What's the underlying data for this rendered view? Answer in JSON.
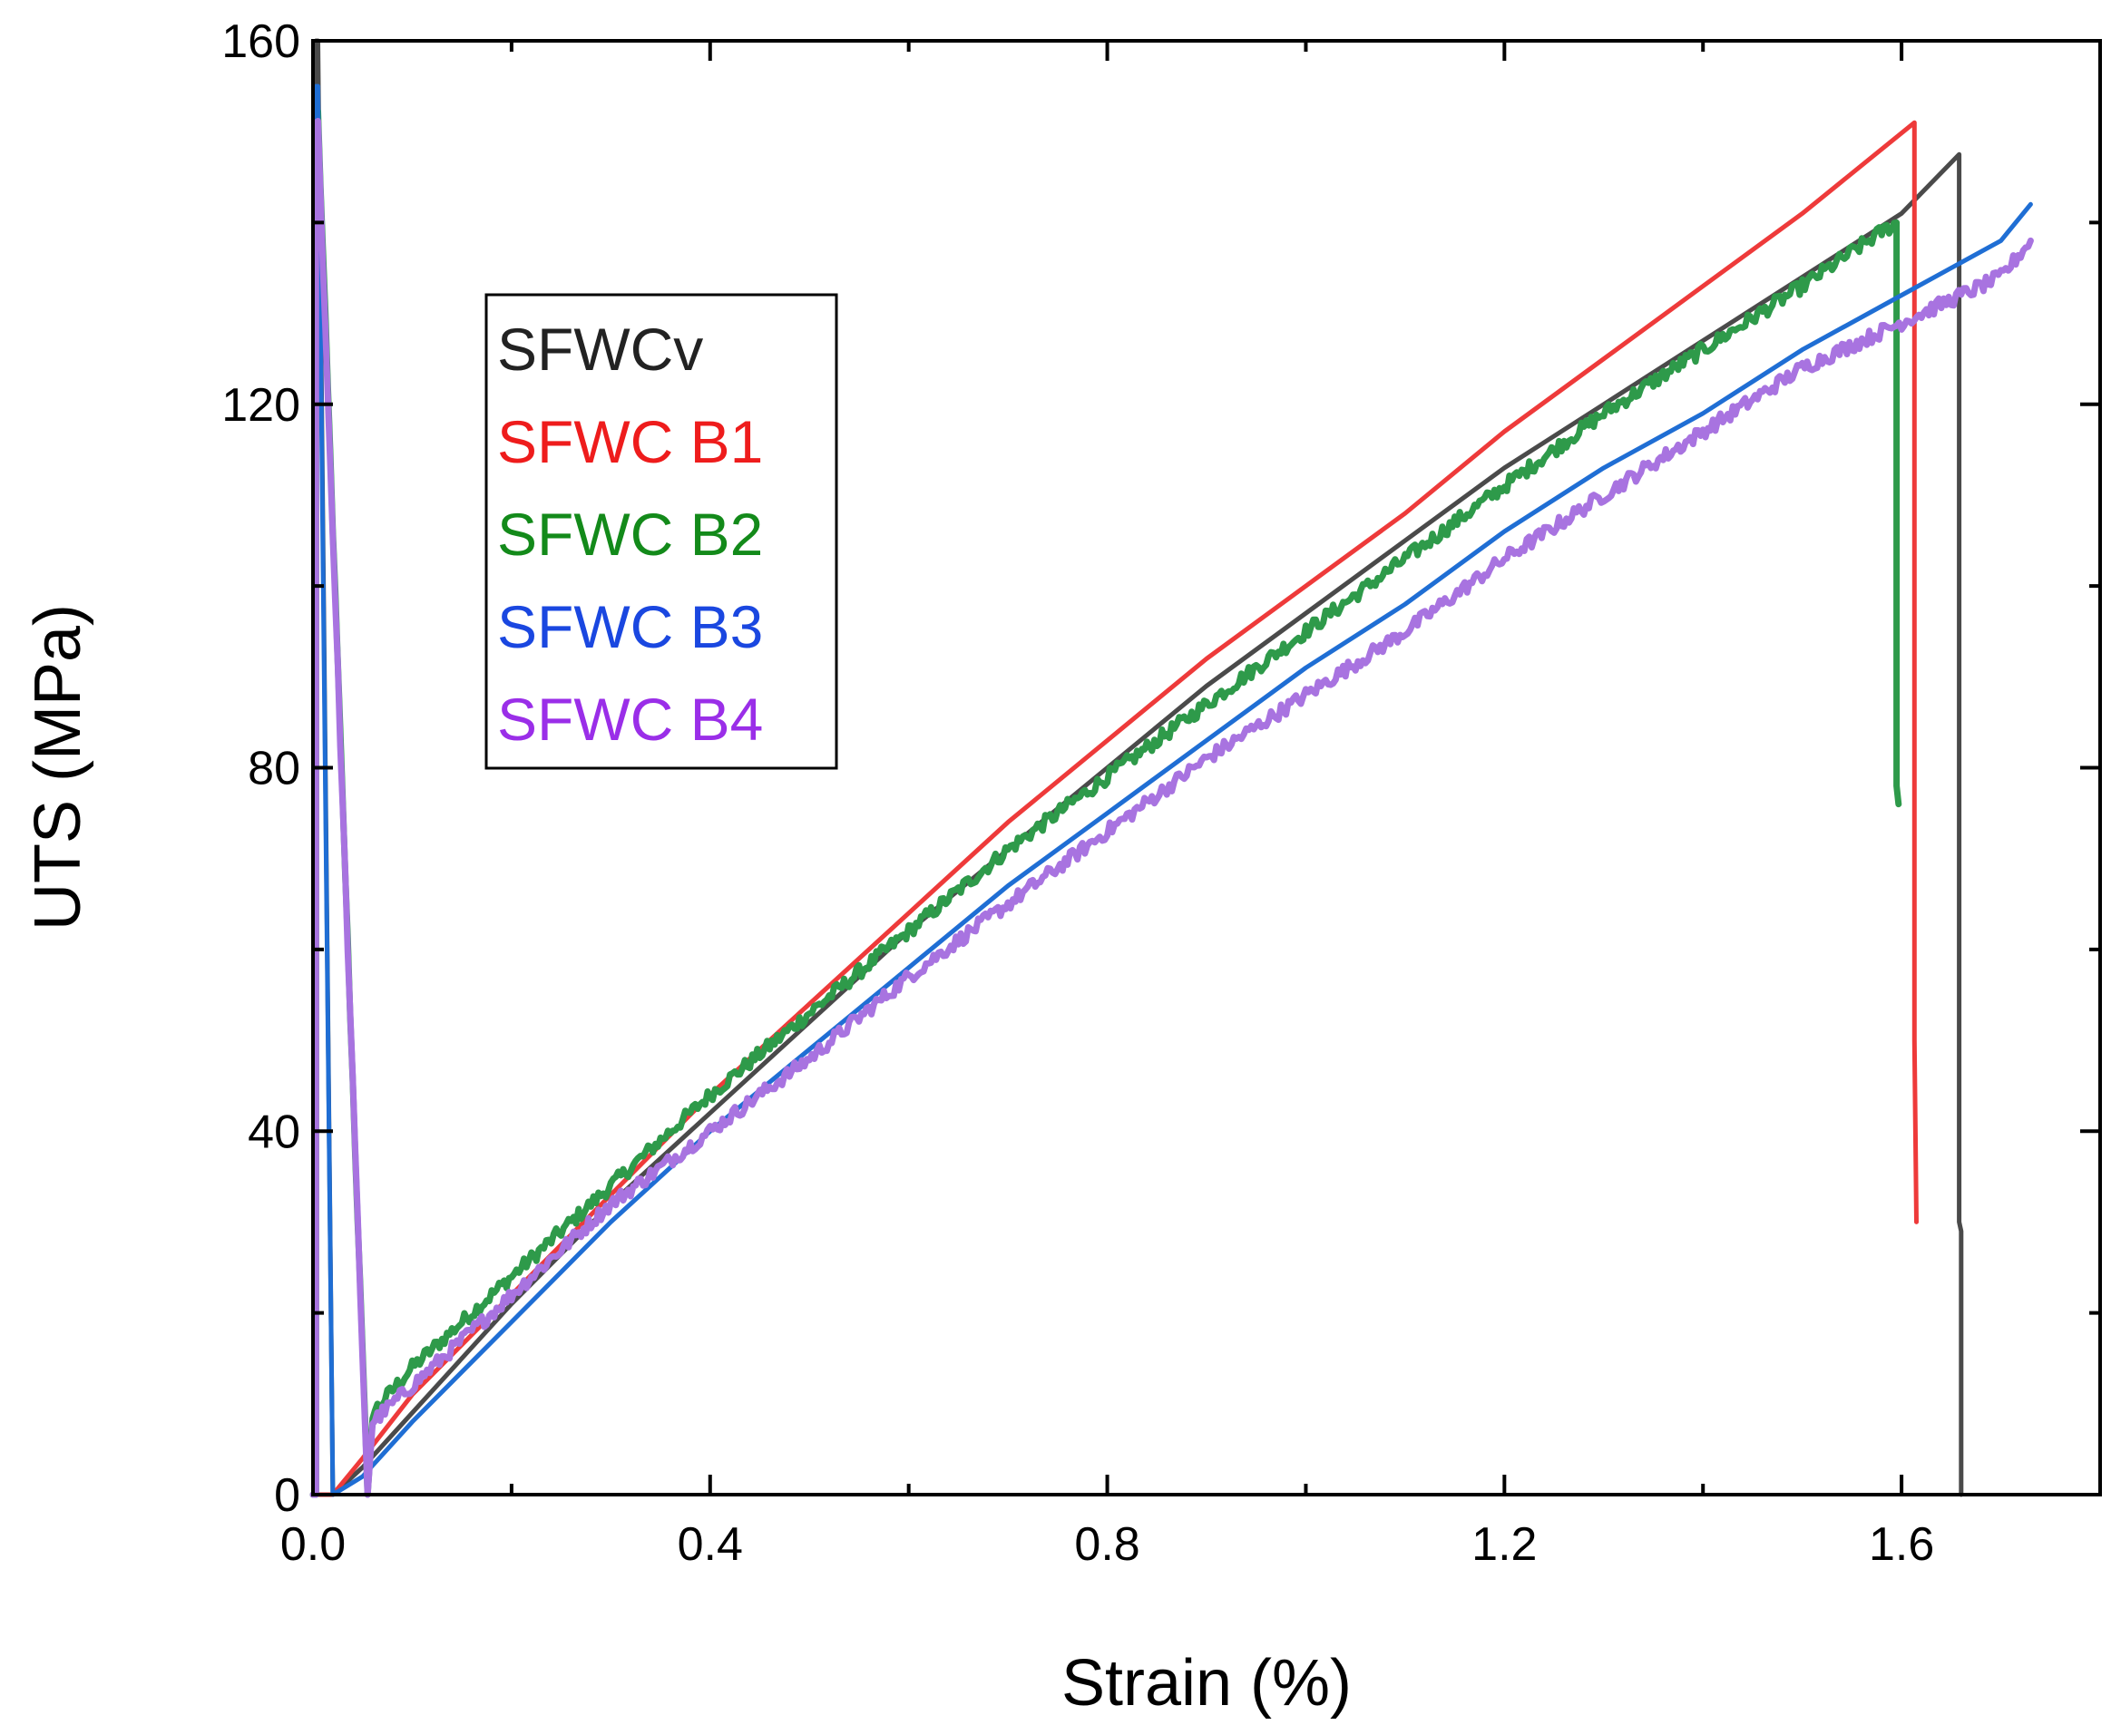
{
  "chart_data": {
    "type": "line",
    "title": "",
    "xlabel": "Strain (%)",
    "ylabel": "UTS (MPa)",
    "xlim": [
      0,
      1.8
    ],
    "ylim": [
      0,
      160
    ],
    "xticks": [
      0.0,
      0.4,
      0.8,
      1.2,
      1.6
    ],
    "xtick_labels": [
      "0.0",
      "0.4",
      "0.8",
      "1.2",
      "1.6"
    ],
    "yticks": [
      0,
      40,
      80,
      120,
      160
    ],
    "ytick_labels": [
      "0",
      "40",
      "80",
      "120",
      "160"
    ],
    "grid": false,
    "legend_position": "top-left",
    "series": [
      {
        "name": "SFWCv",
        "color": "#222222",
        "line_color": "#4a4a4a",
        "noisy": false,
        "x": [
          0.0,
          0.003,
          0.003,
          0.005,
          0.02,
          0.05,
          0.1,
          0.2,
          0.3,
          0.4,
          0.5,
          0.6,
          0.7,
          0.8,
          0.9,
          1.0,
          1.1,
          1.2,
          1.3,
          1.4,
          1.5,
          1.6,
          1.658,
          1.658,
          1.66,
          1.66
        ],
        "y": [
          0,
          0,
          160,
          160,
          0,
          3,
          9,
          21,
          32,
          42,
          52,
          62,
          71,
          80,
          89,
          97,
          105,
          113,
          120,
          127,
          134,
          141,
          147.5,
          30,
          29,
          0
        ]
      },
      {
        "name": "SFWC B1",
        "color": "#ee1c1c",
        "line_color": "#ee3a3a",
        "noisy": false,
        "x": [
          0.0,
          0.02,
          0.05,
          0.1,
          0.2,
          0.3,
          0.4,
          0.5,
          0.6,
          0.7,
          0.8,
          0.9,
          1.0,
          1.1,
          1.2,
          1.3,
          1.4,
          1.5,
          1.613,
          1.613,
          1.615
        ],
        "y": [
          0,
          0,
          4,
          11,
          22,
          33,
          44,
          54,
          64,
          74,
          83,
          92,
          100,
          108,
          117,
          125,
          133,
          141,
          151,
          50,
          30
        ]
      },
      {
        "name": "SFWC B2",
        "color": "#138a1a",
        "line_color": "#2e9a4a",
        "noisy": true,
        "x": [
          0.0,
          0.003,
          0.003,
          0.005,
          0.055,
          0.06,
          0.1,
          0.2,
          0.3,
          0.4,
          0.5,
          0.6,
          0.7,
          0.8,
          0.9,
          1.0,
          1.1,
          1.2,
          1.3,
          1.4,
          1.5,
          1.58,
          1.595,
          1.595,
          1.597
        ],
        "y": [
          0,
          0,
          152,
          152,
          0,
          9,
          14,
          24,
          34,
          44,
          53,
          62,
          71,
          79,
          87,
          95,
          103,
          111,
          119,
          126,
          133,
          139,
          140,
          78,
          76
        ]
      },
      {
        "name": "SFWC B3",
        "color": "#1a47e0",
        "line_color": "#1f6ed4",
        "noisy": false,
        "x": [
          0.0,
          0.003,
          0.003,
          0.005,
          0.02,
          0.05,
          0.1,
          0.2,
          0.3,
          0.4,
          0.5,
          0.6,
          0.7,
          0.8,
          0.9,
          1.0,
          1.1,
          1.2,
          1.3,
          1.4,
          1.5,
          1.6,
          1.7,
          1.73
        ],
        "y": [
          0,
          0,
          155,
          155,
          0,
          2,
          8,
          19,
          30,
          40,
          49,
          58,
          67,
          75,
          83,
          91,
          98,
          106,
          113,
          119,
          126,
          132,
          138,
          142
        ]
      },
      {
        "name": "SFWC B4",
        "color": "#9a2ee8",
        "line_color": "#a873e0",
        "noisy": true,
        "x": [
          0.0,
          0.003,
          0.003,
          0.005,
          0.055,
          0.06,
          0.1,
          0.2,
          0.3,
          0.4,
          0.5,
          0.6,
          0.7,
          0.8,
          0.9,
          1.0,
          1.1,
          1.2,
          1.3,
          1.4,
          1.5,
          1.6,
          1.7,
          1.73
        ],
        "y": [
          0,
          0,
          151,
          151,
          0,
          8,
          12,
          22,
          32,
          40,
          48,
          57,
          65,
          73,
          81,
          88,
          95,
          103,
          110,
          117,
          124,
          129,
          134,
          138
        ]
      }
    ]
  }
}
